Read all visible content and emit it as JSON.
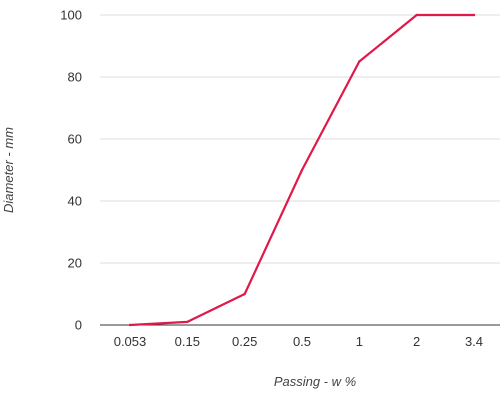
{
  "chart_data": {
    "type": "line",
    "x_axis_type": "categorical",
    "categories": [
      "0.053",
      "0.15",
      "0.25",
      "0.5",
      "1",
      "2",
      "3.4"
    ],
    "values": [
      0,
      1,
      10,
      50,
      85,
      100,
      100
    ],
    "xlabel": "Passing - w %",
    "ylabel": "Diameter - mm",
    "ylim": [
      0,
      100
    ],
    "yticks": [
      0,
      20,
      40,
      60,
      80,
      100
    ],
    "grid": true,
    "legend": "none",
    "line_color": "#e0194a",
    "grid_color": "#dddddd"
  }
}
